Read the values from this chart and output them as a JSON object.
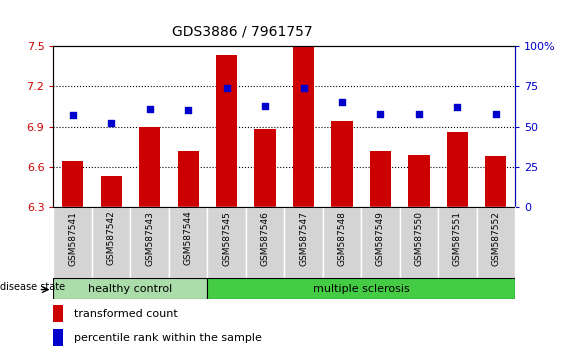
{
  "title": "GDS3886 / 7961757",
  "samples": [
    "GSM587541",
    "GSM587542",
    "GSM587543",
    "GSM587544",
    "GSM587545",
    "GSM587546",
    "GSM587547",
    "GSM587548",
    "GSM587549",
    "GSM587550",
    "GSM587551",
    "GSM587552"
  ],
  "bar_values": [
    6.64,
    6.53,
    6.9,
    6.72,
    7.43,
    6.88,
    7.49,
    6.94,
    6.72,
    6.69,
    6.86,
    6.68
  ],
  "percentile_values": [
    57,
    52,
    61,
    60,
    74,
    63,
    74,
    65,
    58,
    58,
    62,
    58
  ],
  "ylim_left": [
    6.3,
    7.5
  ],
  "ylim_right": [
    0,
    100
  ],
  "yticks_left": [
    6.3,
    6.6,
    6.9,
    7.2,
    7.5
  ],
  "yticks_right": [
    0,
    25,
    50,
    75,
    100
  ],
  "ytick_labels_right": [
    "0",
    "25",
    "50",
    "75",
    "100%"
  ],
  "bar_color": "#cc0000",
  "dot_color": "#0000cc",
  "healthy_color": "#aaddaa",
  "ms_color": "#44cc44",
  "healthy_label": "healthy control",
  "ms_label": "multiple sclerosis",
  "disease_state_label": "disease state",
  "legend_bar_label": "transformed count",
  "legend_dot_label": "percentile rank within the sample",
  "n_healthy": 4,
  "bar_width": 0.55
}
